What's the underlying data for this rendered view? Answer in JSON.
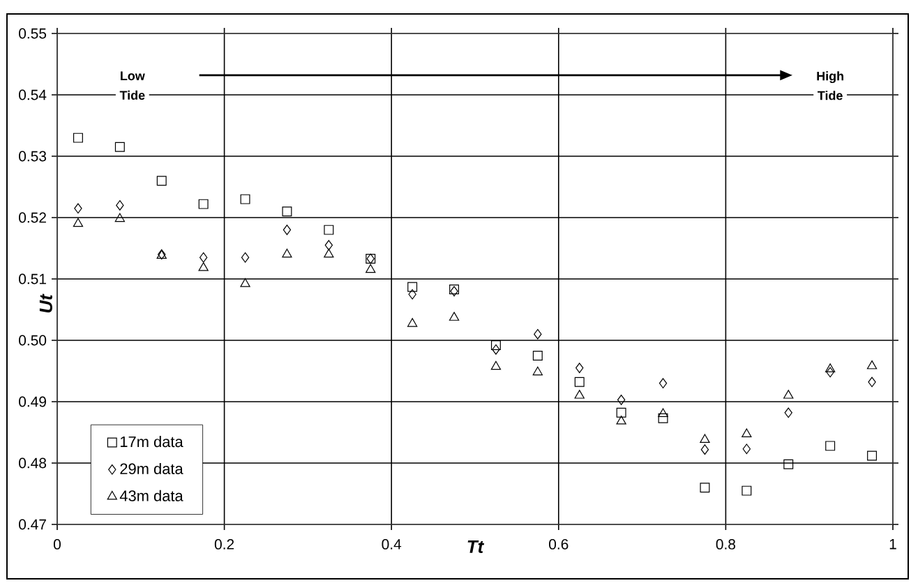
{
  "chart_data": {
    "type": "scatter",
    "xlabel": "Tt",
    "ylabel": "Ut",
    "x": [
      0.025,
      0.075,
      0.125,
      0.175,
      0.225,
      0.275,
      0.325,
      0.375,
      0.425,
      0.475,
      0.525,
      0.575,
      0.625,
      0.675,
      0.725,
      0.775,
      0.825,
      0.875,
      0.925,
      0.975
    ],
    "series": [
      {
        "name": "17m data",
        "color": "#000000",
        "marker": "square",
        "values": [
          0.533,
          0.5315,
          0.526,
          0.5222,
          0.523,
          0.521,
          0.518,
          0.5133,
          0.5087,
          0.5083,
          0.4992,
          0.4975,
          0.4932,
          0.4882,
          0.4873,
          0.476,
          0.4755,
          0.4798,
          0.4828,
          0.4812
        ]
      },
      {
        "name": "29m data",
        "color": "#000000",
        "marker": "diamond",
        "values": [
          0.5215,
          0.522,
          0.514,
          0.5135,
          0.5135,
          0.518,
          0.5155,
          0.5133,
          0.5075,
          0.508,
          0.4985,
          0.501,
          0.4955,
          0.4903,
          0.493,
          0.4822,
          0.4823,
          0.4882,
          0.4948,
          0.4932
        ]
      },
      {
        "name": "43m data",
        "color": "#000000",
        "marker": "triangle",
        "values": [
          0.519,
          0.5198,
          0.5138,
          0.5118,
          0.5092,
          0.514,
          0.514,
          0.5115,
          0.5027,
          0.5037,
          0.4957,
          0.4948,
          0.491,
          0.4868,
          0.488,
          0.4838,
          0.4847,
          0.491,
          0.4953,
          0.4958
        ]
      }
    ],
    "xlim": [
      0,
      1
    ],
    "xticks": [
      0,
      0.2,
      0.4,
      0.6,
      0.8,
      1
    ],
    "ylim": [
      0.47,
      0.55
    ],
    "yticks": [
      {
        "value": 0.47,
        "label": "0.47"
      },
      {
        "value": 0.48,
        "label": "0.48"
      },
      {
        "value": 0.49,
        "label": "0.49"
      },
      {
        "value": 0.5,
        "label": "0.50"
      },
      {
        "value": 0.51,
        "label": "0.51"
      },
      {
        "value": 0.52,
        "label": "0.52"
      },
      {
        "value": 0.53,
        "label": "0.53"
      },
      {
        "value": 0.54,
        "label": "0.54"
      },
      {
        "value": 0.55,
        "label": "0.55"
      }
    ],
    "annotations": [
      "Low Tide",
      "High Tide"
    ],
    "grid": true,
    "legend": "bottom left"
  }
}
